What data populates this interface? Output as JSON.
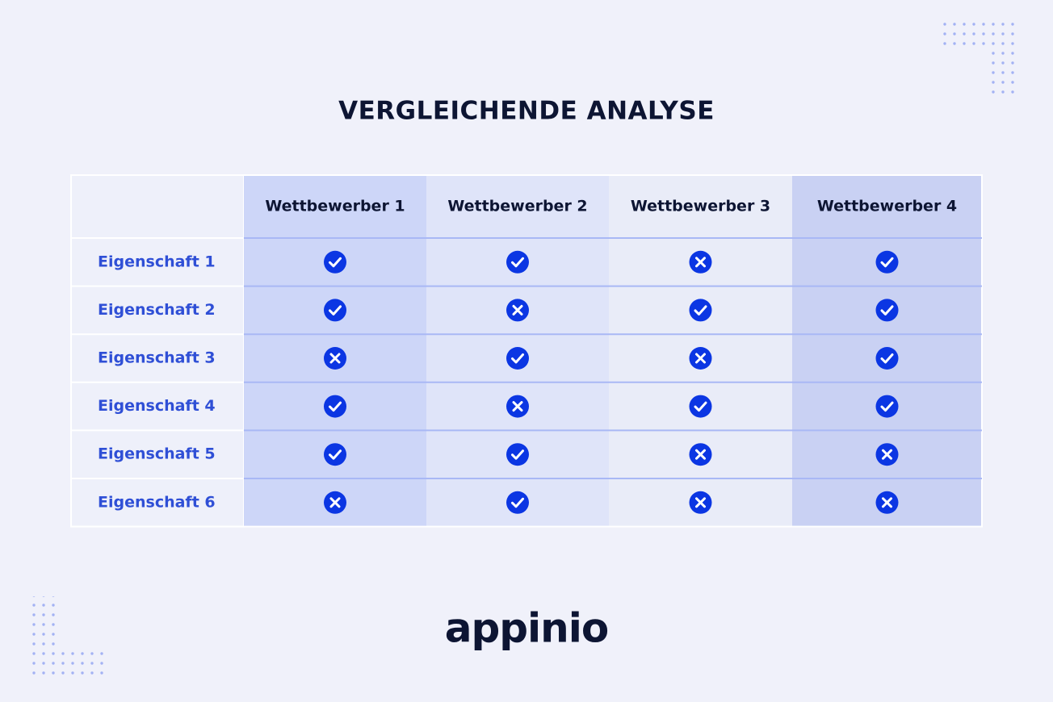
{
  "title": "VERGLEICHENDE ANALYSE",
  "table": {
    "columns": [
      "Wettbewerber 1",
      "Wettbewerber 2",
      "Wettbewerber 3",
      "Wettbewerber 4"
    ],
    "rows": [
      {
        "label": "Eigenschaft 1",
        "values": [
          true,
          true,
          false,
          true
        ]
      },
      {
        "label": "Eigenschaft 2",
        "values": [
          true,
          false,
          true,
          true
        ]
      },
      {
        "label": "Eigenschaft 3",
        "values": [
          false,
          true,
          false,
          true
        ]
      },
      {
        "label": "Eigenschaft 4",
        "values": [
          true,
          false,
          true,
          true
        ]
      },
      {
        "label": "Eigenschaft 5",
        "values": [
          true,
          true,
          false,
          false
        ]
      },
      {
        "label": "Eigenschaft 6",
        "values": [
          false,
          true,
          false,
          false
        ]
      }
    ]
  },
  "logo": "appinio"
}
